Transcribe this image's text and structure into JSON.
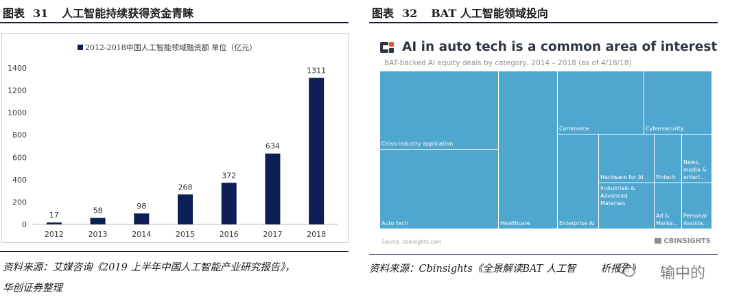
{
  "left": {
    "figure_label": "图表",
    "figure_number": "31",
    "figure_title": "人工智能持续获得资金青睐",
    "source_line1": "资料来源：艾媒咨询《2019 上半年中国人工智能产业研究报告》，",
    "source_line2": "华创证券整理"
  },
  "right": {
    "figure_label": "图表",
    "figure_number": "32",
    "figure_title": "BAT 人工智能领域投向",
    "source_line": "资料来源：Cbinsights《全景解读BAT 人工智",
    "source_tail": "析报告》",
    "treemap": {
      "title": "AI in auto tech is a common area of interest",
      "subtitle": "BAT-backed AI equity deals by category, 2014 – 2018 (as of 4/18/18)",
      "footer_source": "Source: cbinsights.com",
      "brand": "CBINSIGHTS",
      "color": "#4fa6cf",
      "cells": [
        {
          "label": "Cross-industry application"
        },
        {
          "label": "Auto tech"
        },
        {
          "label": "Healthcare"
        },
        {
          "label": "Commerce"
        },
        {
          "label": "Cybersecurity"
        },
        {
          "label": "Enterprise AI"
        },
        {
          "label": "Hardware for AI"
        },
        {
          "label": "Industrials & Advanced Materials"
        },
        {
          "label": "Fintech"
        },
        {
          "label": "News, media & entert..."
        },
        {
          "label": "Ad & Marke..."
        },
        {
          "label": "Personal Assista..."
        }
      ]
    }
  },
  "watermark": {
    "text": "输中的"
  },
  "chart_data": {
    "type": "bar",
    "title": "",
    "legend": "2012-2018中国人工智能领域融资额 单位（亿元）",
    "legend_position": "top",
    "categories": [
      "2012",
      "2013",
      "2014",
      "2015",
      "2016",
      "2017",
      "2018"
    ],
    "values": [
      17,
      58,
      98,
      268,
      372,
      634,
      1311
    ],
    "ylim": [
      0,
      1400
    ],
    "yticks": [
      0,
      200,
      400,
      600,
      800,
      1000,
      1200,
      1400
    ],
    "xlabel": "",
    "ylabel": "",
    "bar_color": "#0d1f55",
    "grid": false
  }
}
